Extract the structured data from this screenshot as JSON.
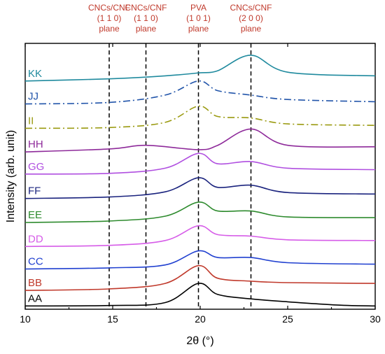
{
  "chart_data": {
    "type": "line",
    "xlabel": "2θ (°)",
    "ylabel": "Intensity (arb. unit)",
    "xlim": [
      10,
      30
    ],
    "xticks": [
      10,
      15,
      20,
      25,
      30
    ],
    "grid": false,
    "reference_lines": [
      {
        "x": 14.8,
        "label_lines": [
          "CNCs/CNF",
          "(1 1 0)",
          "plane"
        ]
      },
      {
        "x": 16.9,
        "label_lines": [
          "CNCs/CNF",
          "(1 1 0)",
          "plane"
        ]
      },
      {
        "x": 19.9,
        "label_lines": [
          "PVA",
          "(1 0 1)",
          "plane"
        ]
      },
      {
        "x": 22.9,
        "label_lines": [
          "CNCs/CNF",
          "(2 0 0)",
          "plane"
        ]
      }
    ],
    "series": [
      {
        "name": "AA",
        "color": "#000000",
        "style": "solid",
        "points": [
          [
            10,
            0.45
          ],
          [
            14.8,
            0.5
          ],
          [
            18,
            0.9
          ],
          [
            19.9,
            3.5
          ],
          [
            21,
            2.0
          ],
          [
            22.9,
            1.4
          ],
          [
            25,
            1.0
          ],
          [
            28,
            0.55
          ],
          [
            30,
            0.45
          ]
        ]
      },
      {
        "name": "BB",
        "color": "#c0392b",
        "style": "solid",
        "points": [
          [
            10,
            2.55
          ],
          [
            14.8,
            2.75
          ],
          [
            18,
            3.5
          ],
          [
            19.9,
            5.9
          ],
          [
            21,
            4.2
          ],
          [
            22.9,
            3.8
          ],
          [
            25,
            3.6
          ],
          [
            30,
            3.5
          ]
        ]
      },
      {
        "name": "CC",
        "color": "#2040d0",
        "style": "solid",
        "points": [
          [
            10,
            5.45
          ],
          [
            14.8,
            5.6
          ],
          [
            18,
            6.0
          ],
          [
            19.9,
            7.9
          ],
          [
            21,
            7.0
          ],
          [
            22.9,
            7.0
          ],
          [
            25,
            6.3
          ],
          [
            30,
            6.1
          ]
        ]
      },
      {
        "name": "DD",
        "color": "#d65ce8",
        "style": "solid",
        "points": [
          [
            10,
            8.5
          ],
          [
            14.8,
            8.65
          ],
          [
            18,
            9.3
          ],
          [
            19.9,
            11.3
          ],
          [
            21,
            10.1
          ],
          [
            22.9,
            9.9
          ],
          [
            25,
            9.4
          ],
          [
            30,
            9.3
          ]
        ]
      },
      {
        "name": "EE",
        "color": "#2e8b2e",
        "style": "solid",
        "points": [
          [
            10,
            11.75
          ],
          [
            14.8,
            11.95
          ],
          [
            18,
            12.6
          ],
          [
            19.9,
            14.5
          ],
          [
            21,
            13.3
          ],
          [
            22.9,
            13.3
          ],
          [
            25,
            12.5
          ],
          [
            30,
            12.4
          ]
        ]
      },
      {
        "name": "FF",
        "color": "#1a237e",
        "style": "solid",
        "points": [
          [
            10,
            15.0
          ],
          [
            14.8,
            15.2
          ],
          [
            18,
            15.9
          ],
          [
            19.9,
            17.8
          ],
          [
            21,
            16.5
          ],
          [
            22.9,
            16.8
          ],
          [
            25,
            15.8
          ],
          [
            30,
            15.6
          ]
        ]
      },
      {
        "name": "GG",
        "color": "#b04fe0",
        "style": "solid",
        "points": [
          [
            10,
            18.3
          ],
          [
            14.8,
            18.4
          ],
          [
            18,
            19.1
          ],
          [
            19.9,
            21.1
          ],
          [
            21,
            19.7
          ],
          [
            22.9,
            20.0
          ],
          [
            25,
            19.1
          ],
          [
            30,
            18.9
          ]
        ]
      },
      {
        "name": "HH",
        "color": "#8e2a9a",
        "style": "solid",
        "points": [
          [
            10,
            21.3
          ],
          [
            14.8,
            21.7
          ],
          [
            16.9,
            22.2
          ],
          [
            19.9,
            21.6
          ],
          [
            21,
            22.2
          ],
          [
            22.9,
            24.4
          ],
          [
            25,
            22.2
          ],
          [
            30,
            22.0
          ]
        ]
      },
      {
        "name": "II",
        "color": "#9a9a10",
        "style": "dashdot",
        "points": [
          [
            10,
            24.5
          ],
          [
            14.8,
            24.6
          ],
          [
            18,
            25.3
          ],
          [
            19.9,
            27.5
          ],
          [
            21,
            26.1
          ],
          [
            22.9,
            25.9
          ],
          [
            25,
            25.1
          ],
          [
            30,
            24.9
          ]
        ]
      },
      {
        "name": "JJ",
        "color": "#2255aa",
        "style": "dashdot",
        "points": [
          [
            10,
            27.8
          ],
          [
            14.8,
            28.0
          ],
          [
            18,
            29.0
          ],
          [
            19.9,
            30.9
          ],
          [
            21,
            29.6
          ],
          [
            22.9,
            29.0
          ],
          [
            25,
            28.4
          ],
          [
            30,
            28.1
          ]
        ]
      },
      {
        "name": "KK",
        "color": "#1f8a9e",
        "style": "solid",
        "points": [
          [
            10,
            30.9
          ],
          [
            14.8,
            31.2
          ],
          [
            18,
            31.6
          ],
          [
            19.9,
            32.0
          ],
          [
            21,
            32.3
          ],
          [
            22.9,
            34.4
          ],
          [
            25,
            32.1
          ],
          [
            30,
            31.6
          ]
        ]
      }
    ]
  }
}
